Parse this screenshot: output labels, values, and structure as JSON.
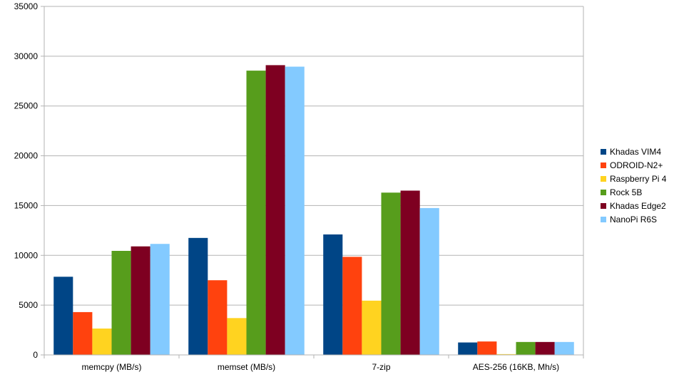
{
  "chart_data": {
    "type": "bar",
    "title": "",
    "xlabel": "",
    "ylabel": "",
    "categories": [
      "memcpy (MB/s)",
      "memset (MB/s)",
      "7-zip",
      "AES-256 (16KB, Mh/s)"
    ],
    "ylim": [
      0,
      35000
    ],
    "yticks": [
      0,
      5000,
      10000,
      15000,
      20000,
      25000,
      30000,
      35000
    ],
    "grid": true,
    "legend_position": "right",
    "series": [
      {
        "name": "Khadas VIM4",
        "color": "#004586",
        "values": [
          7850,
          11750,
          12100,
          1250
        ]
      },
      {
        "name": "ODROID-N2+",
        "color": "#ff420e",
        "values": [
          4300,
          7500,
          9850,
          1350
        ]
      },
      {
        "name": "Raspberry Pi 4",
        "color": "#ffd320",
        "values": [
          2650,
          3700,
          5450,
          80
        ]
      },
      {
        "name": "Rock 5B",
        "color": "#579d1c",
        "values": [
          10450,
          28550,
          16300,
          1300
        ]
      },
      {
        "name": "Khadas Edge2",
        "color": "#7e0021",
        "values": [
          10900,
          29100,
          16500,
          1300
        ]
      },
      {
        "name": "NanoPi R6S",
        "color": "#83caff",
        "values": [
          11150,
          28950,
          14750,
          1300
        ]
      }
    ]
  }
}
